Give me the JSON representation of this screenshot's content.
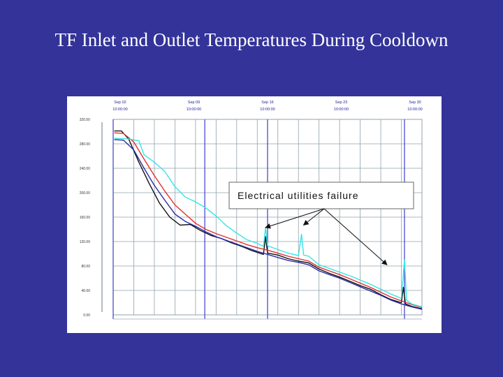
{
  "slide": {
    "title": "TF Inlet and Outlet Temperatures During Cooldown"
  },
  "colors": {
    "background": "#333399",
    "grid": "#8fa1ad",
    "series_black": "#111111",
    "series_red": "#e03030",
    "series_blue": "#2a2aa8",
    "series_cyan": "#33e6e6",
    "marker": "#3c3ccc"
  },
  "chart_data": {
    "type": "line",
    "title": "",
    "xlabel": "",
    "ylabel": "",
    "ylim": [
      0,
      320
    ],
    "y_ticks": [
      "0.00",
      "40.00",
      "80.00",
      "120.00",
      "160.00",
      "200.00",
      "240.00",
      "280.00",
      "320.00"
    ],
    "x_ticks": [
      {
        "date": "Sep 02",
        "time": "10:00:00"
      },
      {
        "date": "Sep 09",
        "time": "10:00:00"
      },
      {
        "date": "Sep 16",
        "time": "10:00:00"
      },
      {
        "date": "Sep 23",
        "time": "10:00:00"
      },
      {
        "date": "Sep 30",
        "time": "10:00:00"
      }
    ],
    "xlim": [
      0,
      30
    ],
    "grid": true,
    "vertical_markers": [
      0,
      8.9,
      15,
      28.3
    ],
    "annotation": {
      "text": "Electrical utilities failure",
      "arrow_targets": [
        [
          14.8,
          143
        ],
        [
          18.5,
          147
        ],
        [
          26.6,
          82
        ]
      ]
    },
    "series": [
      {
        "color_key": "series_black",
        "values": [
          [
            0.1,
            301
          ],
          [
            0.8,
            301
          ],
          [
            1.5,
            288
          ],
          [
            2.5,
            250
          ],
          [
            3.5,
            215
          ],
          [
            4.5,
            183
          ],
          [
            5.5,
            160
          ],
          [
            6.5,
            147
          ],
          [
            7.5,
            148
          ],
          [
            8.5,
            138
          ],
          [
            9.5,
            130
          ],
          [
            10.5,
            125
          ],
          [
            11.5,
            118
          ],
          [
            12.5,
            112
          ],
          [
            13.5,
            105
          ],
          [
            14.6,
            99
          ],
          [
            14.8,
            128
          ],
          [
            15.0,
            101
          ],
          [
            16,
            98
          ],
          [
            17,
            92
          ],
          [
            18,
            88
          ],
          [
            19,
            85
          ],
          [
            20,
            75
          ],
          [
            21,
            68
          ],
          [
            22,
            62
          ],
          [
            23,
            55
          ],
          [
            24,
            48
          ],
          [
            25,
            42
          ],
          [
            26,
            33
          ],
          [
            27,
            25
          ],
          [
            28,
            20
          ],
          [
            28.2,
            45
          ],
          [
            28.4,
            18
          ],
          [
            29,
            14
          ],
          [
            30,
            10
          ]
        ]
      },
      {
        "color_key": "series_red",
        "values": [
          [
            0.1,
            298
          ],
          [
            1,
            297
          ],
          [
            2,
            283
          ],
          [
            3,
            255
          ],
          [
            4,
            228
          ],
          [
            5,
            203
          ],
          [
            6,
            180
          ],
          [
            7,
            165
          ],
          [
            8,
            150
          ],
          [
            9,
            140
          ],
          [
            10,
            133
          ],
          [
            11,
            127
          ],
          [
            12,
            121
          ],
          [
            13,
            115
          ],
          [
            14,
            110
          ],
          [
            15,
            106
          ],
          [
            16,
            101
          ],
          [
            17,
            96
          ],
          [
            18,
            92
          ],
          [
            19,
            88
          ],
          [
            20,
            78
          ],
          [
            21,
            72
          ],
          [
            22,
            66
          ],
          [
            23,
            59
          ],
          [
            24,
            52
          ],
          [
            25,
            45
          ],
          [
            26,
            37
          ],
          [
            27,
            29
          ],
          [
            28,
            23
          ],
          [
            29,
            17
          ],
          [
            30,
            12
          ]
        ]
      },
      {
        "color_key": "series_blue",
        "values": [
          [
            0.1,
            287
          ],
          [
            1,
            286
          ],
          [
            2,
            270
          ],
          [
            3,
            240
          ],
          [
            4,
            212
          ],
          [
            5,
            188
          ],
          [
            6,
            165
          ],
          [
            7,
            153
          ],
          [
            8,
            145
          ],
          [
            9,
            136
          ],
          [
            10,
            128
          ],
          [
            11,
            122
          ],
          [
            12,
            116
          ],
          [
            13,
            110
          ],
          [
            14,
            104
          ],
          [
            15,
            99
          ],
          [
            16,
            94
          ],
          [
            17,
            89
          ],
          [
            18,
            86
          ],
          [
            19,
            82
          ],
          [
            20,
            72
          ],
          [
            21,
            66
          ],
          [
            22,
            60
          ],
          [
            23,
            53
          ],
          [
            24,
            46
          ],
          [
            25,
            39
          ],
          [
            26,
            32
          ],
          [
            27,
            24
          ],
          [
            28,
            18
          ],
          [
            29,
            13
          ],
          [
            30,
            9
          ]
        ]
      },
      {
        "color_key": "series_cyan",
        "values": [
          [
            0.1,
            289
          ],
          [
            1.5,
            288
          ],
          [
            2.5,
            285
          ],
          [
            3,
            262
          ],
          [
            4,
            250
          ],
          [
            5,
            235
          ],
          [
            6,
            210
          ],
          [
            7,
            193
          ],
          [
            8,
            185
          ],
          [
            9,
            175
          ],
          [
            10,
            162
          ],
          [
            11,
            146
          ],
          [
            12,
            134
          ],
          [
            13,
            123
          ],
          [
            14,
            117
          ],
          [
            14.6,
            112
          ],
          [
            14.8,
            143
          ],
          [
            15.0,
            113
          ],
          [
            16,
            107
          ],
          [
            17,
            101
          ],
          [
            18,
            97
          ],
          [
            18.3,
            132
          ],
          [
            18.5,
            98
          ],
          [
            19,
            96
          ],
          [
            20,
            82
          ],
          [
            21,
            76
          ],
          [
            22,
            70
          ],
          [
            23,
            64
          ],
          [
            24,
            57
          ],
          [
            25,
            50
          ],
          [
            26,
            42
          ],
          [
            27,
            34
          ],
          [
            28,
            27
          ],
          [
            28.3,
            90
          ],
          [
            28.5,
            24
          ],
          [
            29,
            18
          ],
          [
            30,
            13
          ]
        ]
      }
    ]
  }
}
